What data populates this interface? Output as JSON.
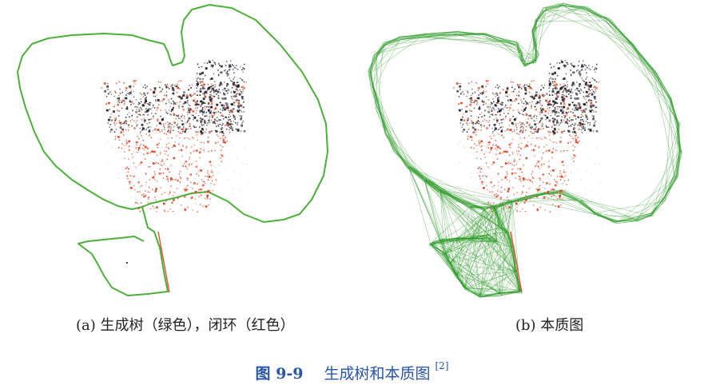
{
  "figure": {
    "label": "图 9-9",
    "title": "生成树和本质图",
    "reference": "[2]"
  },
  "panels": [
    {
      "id": "a",
      "caption": "(a) 生成树（绿色），闭环（红色）",
      "graph_style": "spanning-tree"
    },
    {
      "id": "b",
      "caption": "(b) 本质图",
      "graph_style": "essential-graph"
    }
  ],
  "colors": {
    "trajectory": "#4caf3a",
    "essential_edges": "#2f9a2a",
    "loop_closure": "#e2543a",
    "map_points_red": "#d9401f",
    "map_points_dark": "#1e1e28",
    "caption_blue": "#2855a8"
  }
}
